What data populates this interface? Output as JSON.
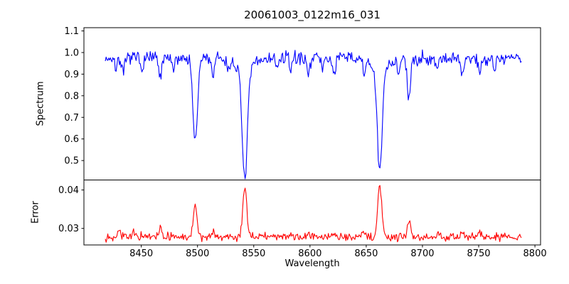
{
  "figure": {
    "background_color": "#ffffff",
    "axis_color": "#000000"
  },
  "chart_data": {
    "type": "line",
    "title": "20061003_0122m16_031",
    "xlabel": "Wavelength",
    "x_range": [
      8399,
      8805
    ],
    "x_ticks": [
      8450,
      8500,
      8550,
      8600,
      8650,
      8700,
      8750,
      8800
    ],
    "grid": false,
    "legend": null,
    "panels": [
      {
        "name": "spectrum",
        "ylabel": "Spectrum",
        "ylim": [
          0.41,
          1.115
        ],
        "y_ticks": [
          0.5,
          0.6,
          0.7,
          0.8,
          0.9,
          1.0,
          1.1
        ],
        "tick_decimals": 1,
        "line_color": "#0000ff",
        "series": {
          "x_start": 8418,
          "x_end": 8788,
          "x_step": 0.74,
          "baseline": 0.975,
          "noise_sigma": 0.016,
          "seed": 7,
          "features": [
            {
              "center": 8427,
              "amp": -0.045,
              "sigma": 1.2
            },
            {
              "center": 8434,
              "amp": -0.075,
              "sigma": 1.4
            },
            {
              "center": 8450,
              "amp": -0.05,
              "sigma": 1.2
            },
            {
              "center": 8467,
              "amp": -0.09,
              "sigma": 1.5
            },
            {
              "center": 8478,
              "amp": -0.06,
              "sigma": 1.2
            },
            {
              "center": 8498,
              "amp": -0.4,
              "sigma": 2.0
            },
            {
              "center": 8514,
              "amp": -0.08,
              "sigma": 1.4
            },
            {
              "center": 8527,
              "amp": -0.05,
              "sigma": 1.2
            },
            {
              "center": 8542,
              "amp": -0.5,
              "sigma": 2.4
            },
            {
              "center": 8542,
              "amp": -0.05,
              "sigma": 8.0
            },
            {
              "center": 8571,
              "amp": -0.05,
              "sigma": 1.3
            },
            {
              "center": 8583,
              "amp": -0.045,
              "sigma": 1.2
            },
            {
              "center": 8598,
              "amp": -0.06,
              "sigma": 1.4
            },
            {
              "center": 8611,
              "amp": -0.045,
              "sigma": 1.2
            },
            {
              "center": 8621,
              "amp": -0.07,
              "sigma": 1.4
            },
            {
              "center": 8648,
              "amp": -0.06,
              "sigma": 1.3
            },
            {
              "center": 8662,
              "amp": -0.48,
              "sigma": 2.2
            },
            {
              "center": 8662,
              "amp": -0.05,
              "sigma": 8.0
            },
            {
              "center": 8679,
              "amp": -0.06,
              "sigma": 1.2
            },
            {
              "center": 8688,
              "amp": -0.2,
              "sigma": 1.5
            },
            {
              "center": 8713,
              "amp": -0.05,
              "sigma": 1.2
            },
            {
              "center": 8735,
              "amp": -0.08,
              "sigma": 1.4
            },
            {
              "center": 8751,
              "amp": -0.07,
              "sigma": 1.3
            },
            {
              "center": 8764,
              "amp": -0.05,
              "sigma": 1.2
            }
          ]
        },
        "main_features": [
          {
            "center": 8498,
            "min_value": 0.575
          },
          {
            "center": 8542,
            "min_value": 0.42
          },
          {
            "center": 8662,
            "min_value": 0.445
          },
          {
            "center": 8688,
            "min_value": 0.77
          }
        ],
        "continuum_level": 0.975
      },
      {
        "name": "error",
        "ylabel": "Error",
        "ylim": [
          0.0257,
          0.0426
        ],
        "y_ticks": [
          0.03,
          0.04
        ],
        "tick_decimals": 2,
        "line_color": "#ff0000",
        "series": {
          "x_start": 8418,
          "x_end": 8788,
          "x_step": 0.74,
          "baseline": 0.0278,
          "noise_sigma": 0.0005,
          "seed": 13,
          "features": [
            {
              "center": 8430,
              "amp": 0.002,
              "sigma": 1.5
            },
            {
              "center": 8443,
              "amp": 0.0015,
              "sigma": 1.2
            },
            {
              "center": 8467,
              "amp": 0.0022,
              "sigma": 1.5
            },
            {
              "center": 8498,
              "amp": 0.0085,
              "sigma": 1.6
            },
            {
              "center": 8514,
              "amp": 0.001,
              "sigma": 1.2
            },
            {
              "center": 8542,
              "amp": 0.0128,
              "sigma": 1.8
            },
            {
              "center": 8558,
              "amp": 0.001,
              "sigma": 1.2
            },
            {
              "center": 8598,
              "amp": 0.0008,
              "sigma": 1.2
            },
            {
              "center": 8621,
              "amp": 0.001,
              "sigma": 1.2
            },
            {
              "center": 8648,
              "amp": 0.0012,
              "sigma": 1.2
            },
            {
              "center": 8662,
              "amp": 0.0135,
              "sigma": 1.8
            },
            {
              "center": 8688,
              "amp": 0.0045,
              "sigma": 1.3
            },
            {
              "center": 8713,
              "amp": 0.0008,
              "sigma": 1.2
            },
            {
              "center": 8735,
              "amp": 0.0012,
              "sigma": 1.3
            },
            {
              "center": 8751,
              "amp": 0.0012,
              "sigma": 1.2
            }
          ]
        },
        "main_features": [
          {
            "center": 8498,
            "max_value": 0.0365
          },
          {
            "center": 8542,
            "max_value": 0.0407
          },
          {
            "center": 8662,
            "max_value": 0.0414
          },
          {
            "center": 8688,
            "max_value": 0.0325
          }
        ],
        "baseline_level": 0.028
      }
    ]
  }
}
